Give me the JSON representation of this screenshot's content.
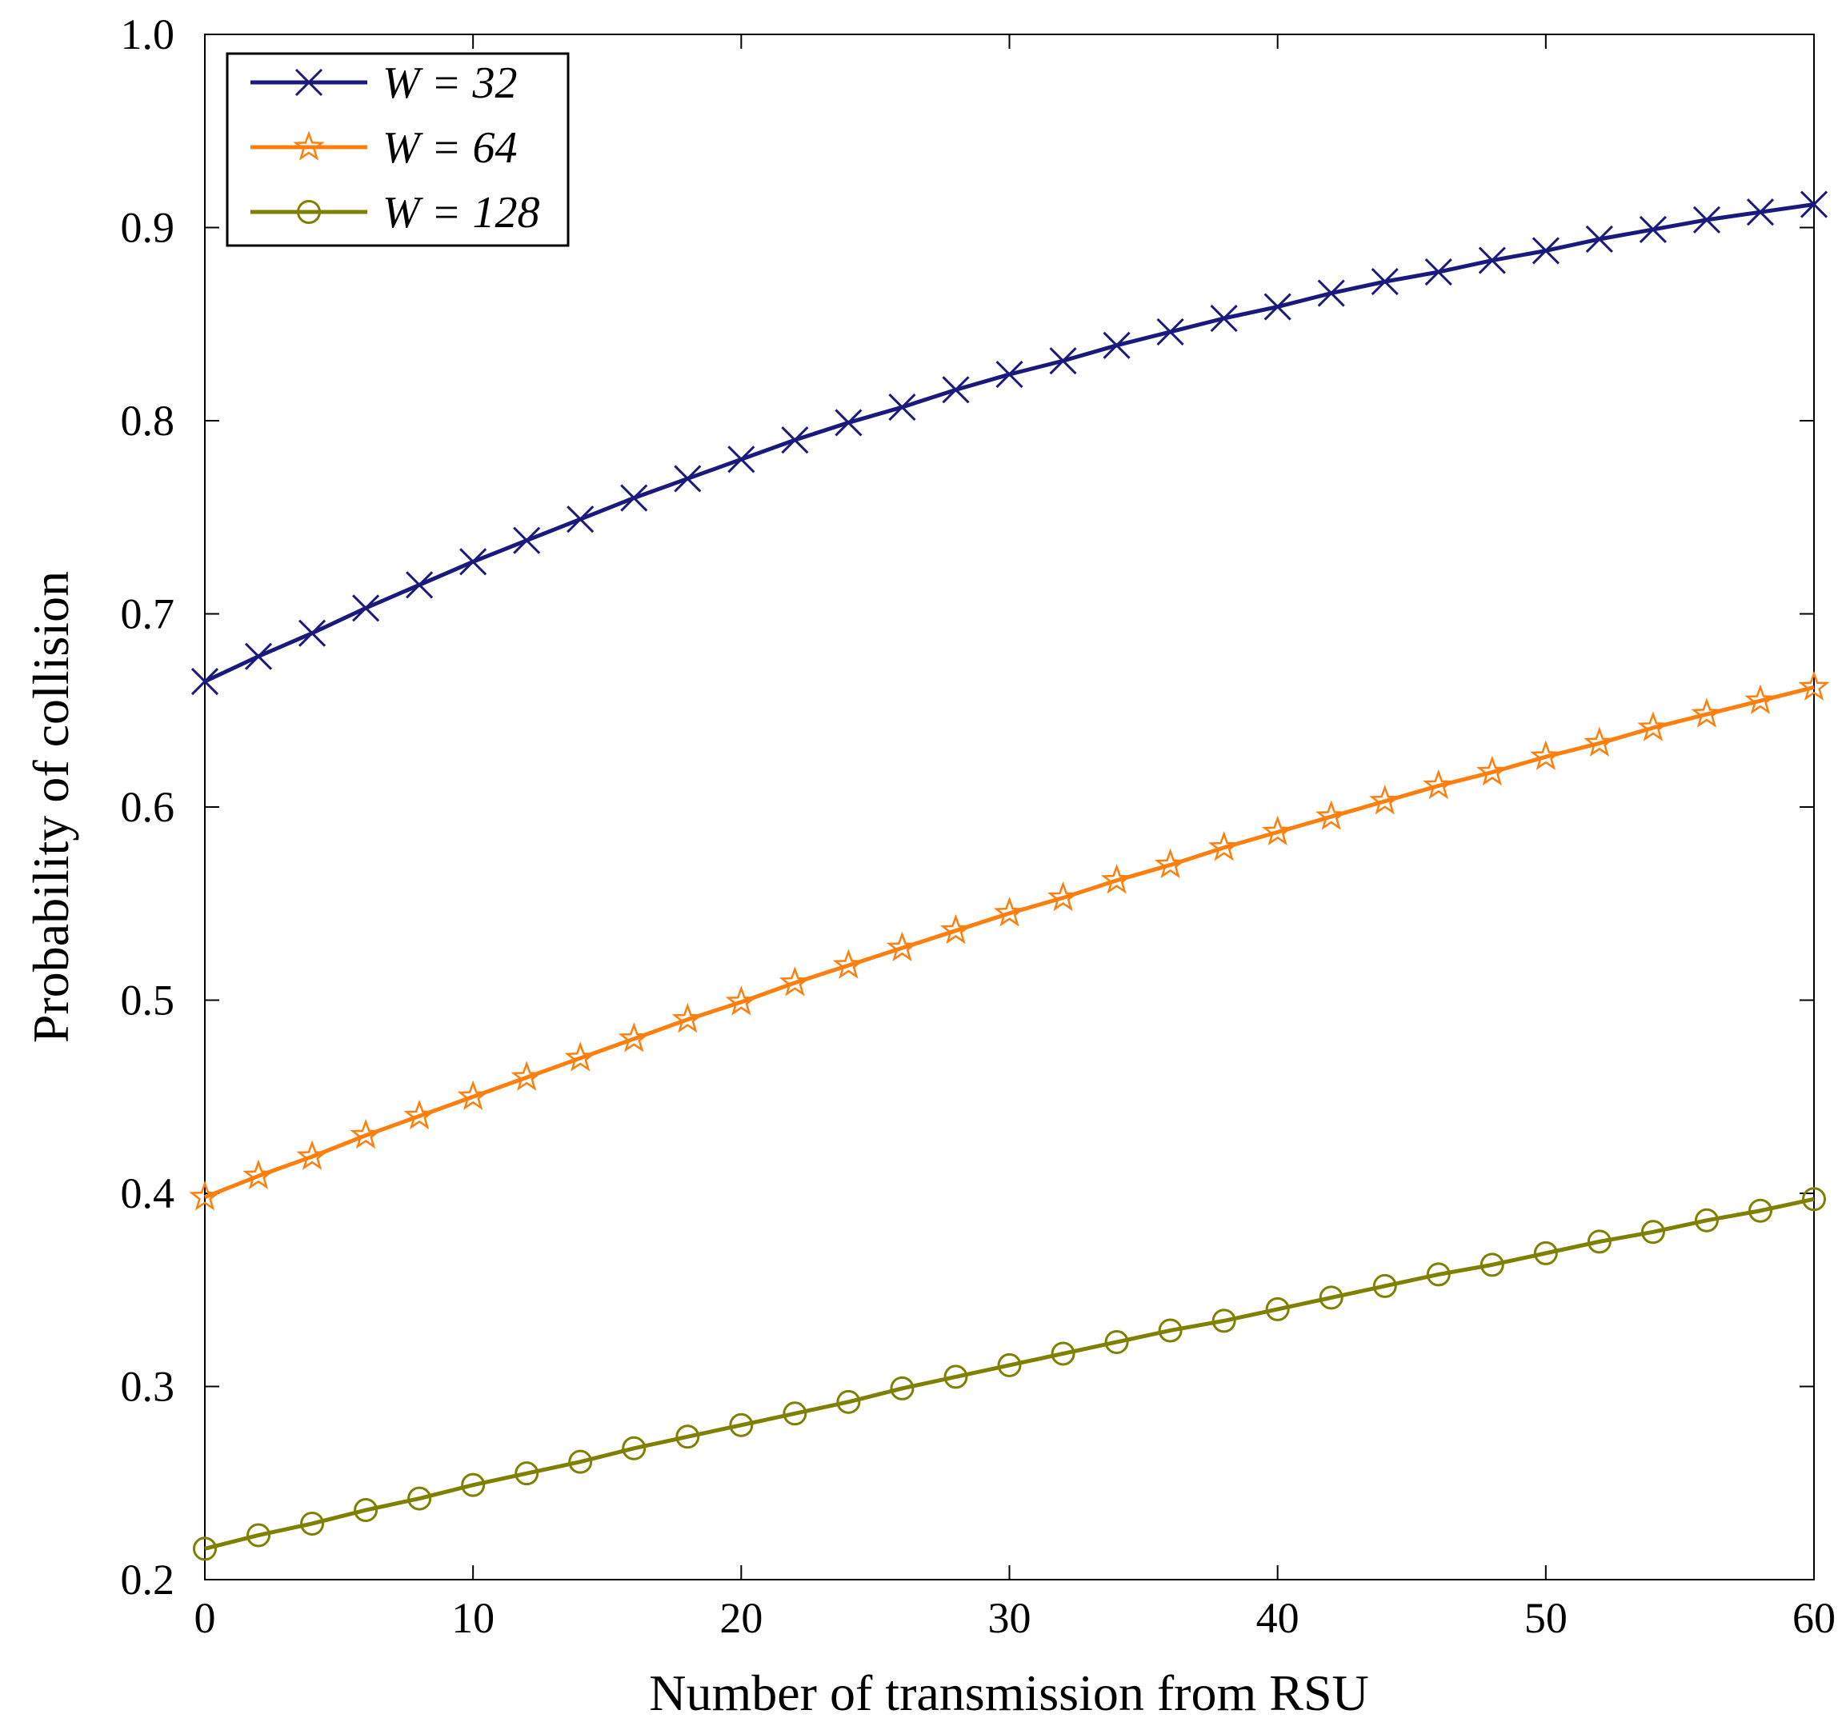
{
  "chart_data": {
    "type": "line",
    "title": "",
    "xlabel": "Number of transmission from RSU",
    "ylabel": "Probability of collision",
    "xlim": [
      0,
      60
    ],
    "ylim": [
      0.2,
      1.0
    ],
    "xticks": [
      0,
      10,
      20,
      30,
      40,
      50,
      60
    ],
    "xtick_labels": [
      "0",
      "10",
      "20",
      "30",
      "40",
      "50",
      "60"
    ],
    "yticks": [
      0.2,
      0.3,
      0.4,
      0.5,
      0.6,
      0.7,
      0.8,
      0.9,
      1.0
    ],
    "ytick_labels": [
      "0.2",
      "0.3",
      "0.4",
      "0.5",
      "0.6",
      "0.7",
      "0.8",
      "0.9",
      "1.0"
    ],
    "grid": false,
    "legend_position": "top-left",
    "x": [
      0,
      2,
      4,
      6,
      8,
      10,
      12,
      14,
      16,
      18,
      20,
      22,
      24,
      26,
      28,
      30,
      32,
      34,
      36,
      38,
      40,
      42,
      44,
      46,
      48,
      50,
      52,
      54,
      56,
      58,
      60
    ],
    "series": [
      {
        "name": "W = 32",
        "color": "#1a1a7e",
        "marker": "x",
        "values": [
          0.665,
          0.678,
          0.69,
          0.703,
          0.715,
          0.727,
          0.738,
          0.749,
          0.76,
          0.77,
          0.78,
          0.79,
          0.799,
          0.807,
          0.816,
          0.824,
          0.831,
          0.839,
          0.846,
          0.853,
          0.859,
          0.866,
          0.872,
          0.877,
          0.883,
          0.888,
          0.894,
          0.899,
          0.904,
          0.908,
          0.912
        ]
      },
      {
        "name": "W = 64",
        "color": "#ff7f0e",
        "marker": "star",
        "values": [
          0.398,
          0.409,
          0.419,
          0.43,
          0.44,
          0.45,
          0.46,
          0.47,
          0.48,
          0.49,
          0.499,
          0.509,
          0.518,
          0.527,
          0.536,
          0.545,
          0.553,
          0.562,
          0.57,
          0.579,
          0.587,
          0.595,
          0.603,
          0.611,
          0.618,
          0.626,
          0.633,
          0.641,
          0.648,
          0.655,
          0.662
        ]
      },
      {
        "name": "W = 128",
        "color": "#808000",
        "marker": "circle",
        "values": [
          0.216,
          0.223,
          0.229,
          0.236,
          0.242,
          0.249,
          0.255,
          0.261,
          0.268,
          0.274,
          0.28,
          0.286,
          0.292,
          0.299,
          0.305,
          0.311,
          0.317,
          0.323,
          0.329,
          0.334,
          0.34,
          0.346,
          0.352,
          0.358,
          0.363,
          0.369,
          0.375,
          0.38,
          0.386,
          0.391,
          0.397
        ]
      }
    ]
  }
}
